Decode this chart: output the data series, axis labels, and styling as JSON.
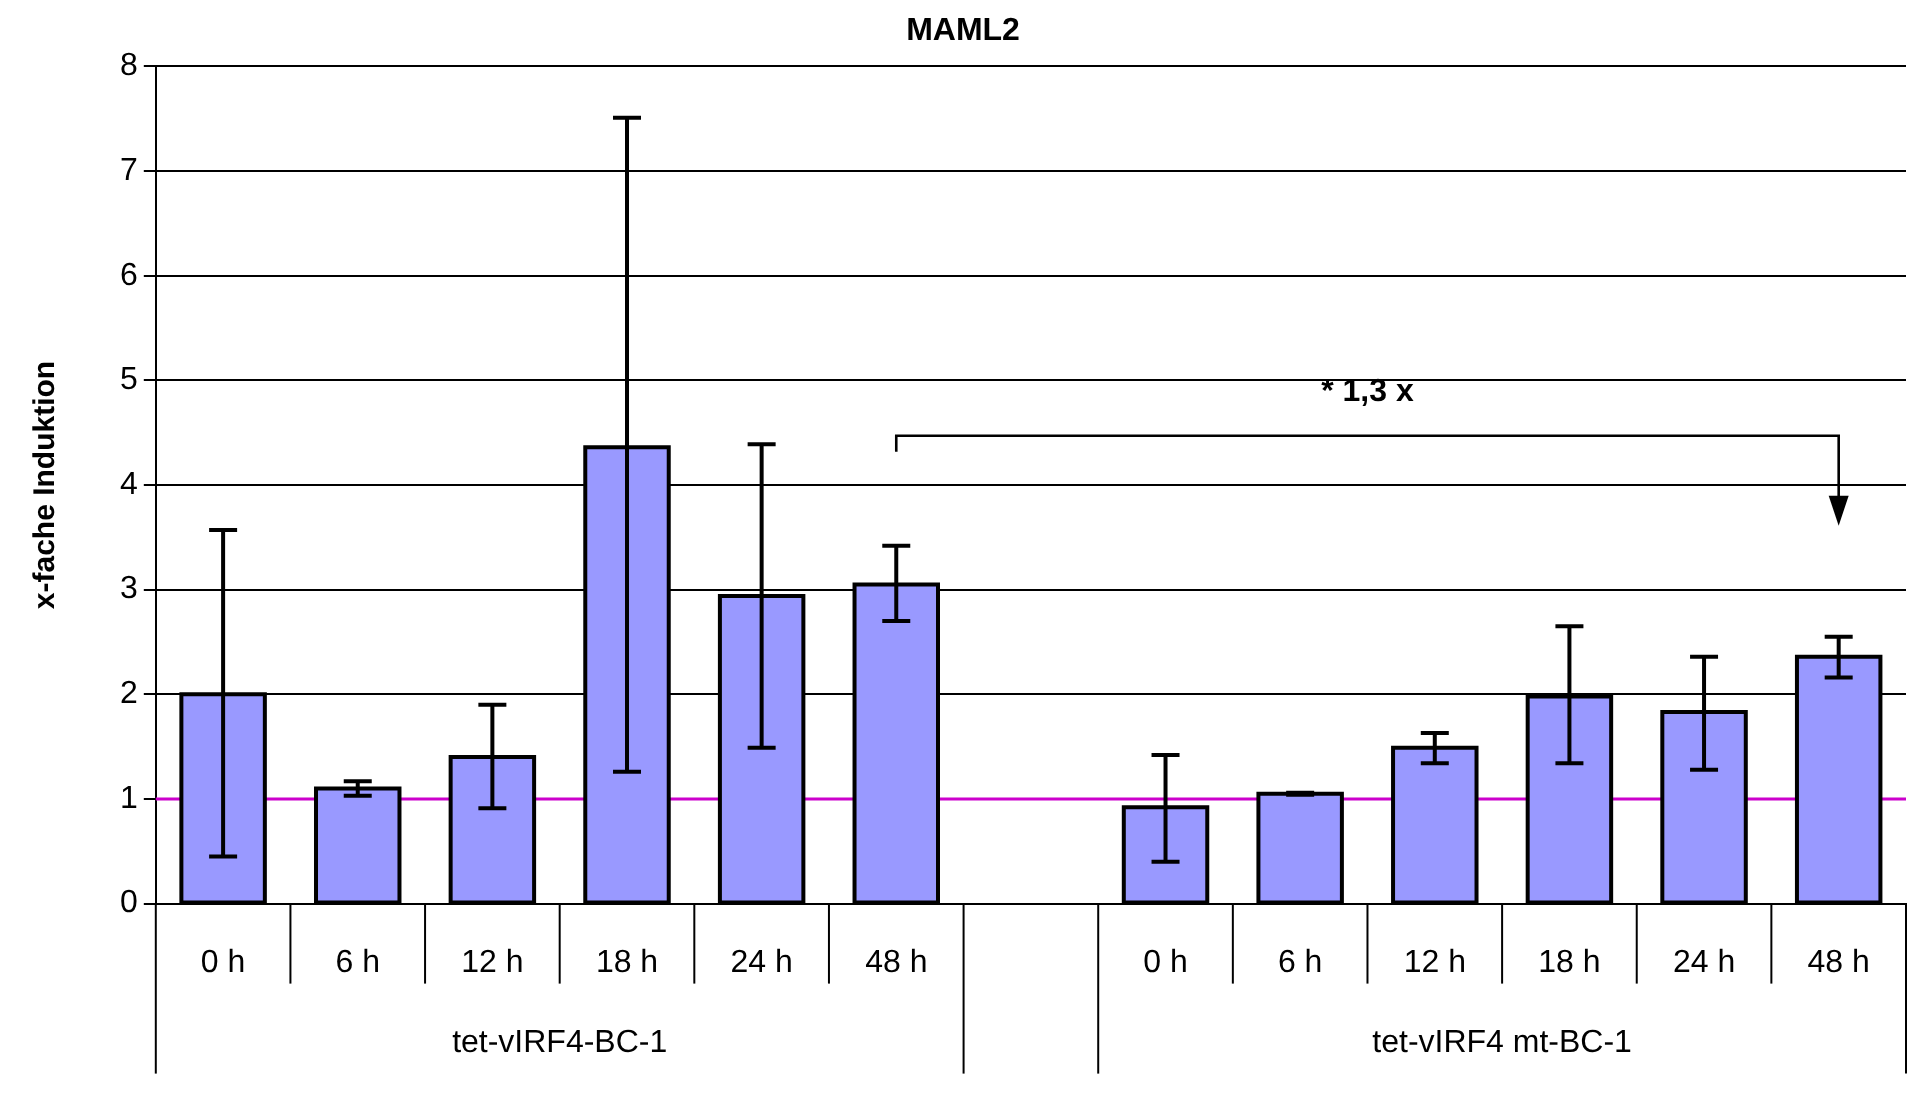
{
  "chart_data": {
    "type": "bar",
    "title": "MAML2",
    "ylabel": "x-fache Induktion",
    "categories": [
      "0 h",
      "6 h",
      "12 h",
      "18 h",
      "24 h",
      "48 h",
      null,
      "0 h",
      "6 h",
      "12 h",
      "18 h",
      "24 h",
      "48 h"
    ],
    "values": [
      2.0,
      1.1,
      1.4,
      4.36,
      2.94,
      3.05,
      null,
      0.92,
      1.05,
      1.49,
      1.98,
      1.83,
      2.36
    ],
    "errors": [
      [
        0.45,
        3.57
      ],
      [
        1.03,
        1.17
      ],
      [
        0.91,
        1.9
      ],
      [
        1.26,
        7.51
      ],
      [
        1.49,
        4.39
      ],
      [
        2.7,
        3.42
      ],
      null,
      [
        0.4,
        1.42
      ],
      [
        1.04,
        1.06
      ],
      [
        1.34,
        1.63
      ],
      [
        1.34,
        2.65
      ],
      [
        1.28,
        2.36
      ],
      [
        2.16,
        2.55
      ]
    ],
    "color": "#9999ff",
    "ylim": [
      0,
      8
    ],
    "yticks": [
      0,
      1,
      2,
      3,
      4,
      5,
      6,
      7,
      8
    ],
    "grid": "y",
    "legend": false,
    "ref_lines": [
      {
        "axis": "y",
        "value": 1,
        "color": "#cc00cc"
      }
    ],
    "annotations": [
      "tet-vIRF4-BC-1",
      "tet-vIRF4 mt-BC-1",
      "* 1,3 x"
    ]
  }
}
